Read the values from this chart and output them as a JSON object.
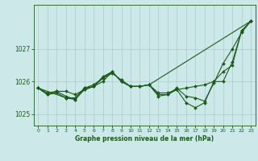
{
  "title": "Graphe pression niveau de la mer (hPa)",
  "background_color": "#cce8e8",
  "grid_color": "#aacccc",
  "line_color": "#1a5c1a",
  "xlim": [
    -0.5,
    23.5
  ],
  "ylim": [
    1024.65,
    1028.35
  ],
  "yticks": [
    1025,
    1026,
    1027
  ],
  "xticks": [
    0,
    1,
    2,
    3,
    4,
    5,
    6,
    7,
    8,
    9,
    10,
    11,
    12,
    13,
    14,
    15,
    16,
    17,
    18,
    19,
    20,
    21,
    22,
    23
  ],
  "series": [
    {
      "x": [
        0,
        1,
        2,
        3,
        4,
        5,
        6,
        7,
        8,
        9,
        10,
        11,
        12,
        13,
        14,
        15,
        16,
        17,
        18,
        19,
        20,
        21,
        22,
        23
      ],
      "y": [
        1025.8,
        1025.65,
        1025.7,
        1025.7,
        1025.6,
        1025.75,
        1025.85,
        1026.1,
        1026.25,
        1026.05,
        1025.85,
        1025.85,
        1025.9,
        1025.65,
        1025.65,
        1025.75,
        1025.8,
        1025.85,
        1025.9,
        1026.0,
        1026.3,
        1026.5,
        1027.55,
        1027.85
      ]
    },
    {
      "x": [
        0,
        1,
        2,
        3,
        4,
        5,
        6,
        7,
        8,
        9,
        10,
        11,
        12,
        13,
        14,
        15,
        16,
        17,
        18,
        19,
        20,
        21,
        22,
        23
      ],
      "y": [
        1025.8,
        1025.6,
        1025.7,
        1025.55,
        1025.45,
        1025.75,
        1025.85,
        1026.0,
        1026.3,
        1026.0,
        1025.85,
        1025.85,
        1025.9,
        1025.55,
        1025.6,
        1025.75,
        1025.35,
        1025.2,
        1025.35,
        1026.0,
        1026.0,
        1026.6,
        1027.55,
        1027.85
      ]
    },
    {
      "x": [
        0,
        1,
        2,
        3,
        4,
        5,
        6,
        7,
        8,
        9,
        10,
        11,
        12,
        13,
        14,
        15,
        16,
        17,
        18,
        19,
        20,
        21,
        22,
        23
      ],
      "y": [
        1025.8,
        1025.6,
        1025.65,
        1025.5,
        1025.5,
        1025.8,
        1025.9,
        1026.1,
        1026.3,
        1026.0,
        1025.85,
        1025.85,
        1025.9,
        1025.6,
        1025.6,
        1025.8,
        1025.55,
        1025.5,
        1025.4,
        1025.95,
        1026.55,
        1027.0,
        1027.5,
        1027.85
      ]
    },
    {
      "x": [
        0,
        3,
        4,
        5,
        6,
        7,
        8,
        9,
        10,
        11,
        12,
        23
      ],
      "y": [
        1025.8,
        1025.5,
        1025.45,
        1025.8,
        1025.85,
        1026.15,
        1026.3,
        1026.0,
        1025.85,
        1025.85,
        1025.9,
        1027.85
      ]
    }
  ]
}
